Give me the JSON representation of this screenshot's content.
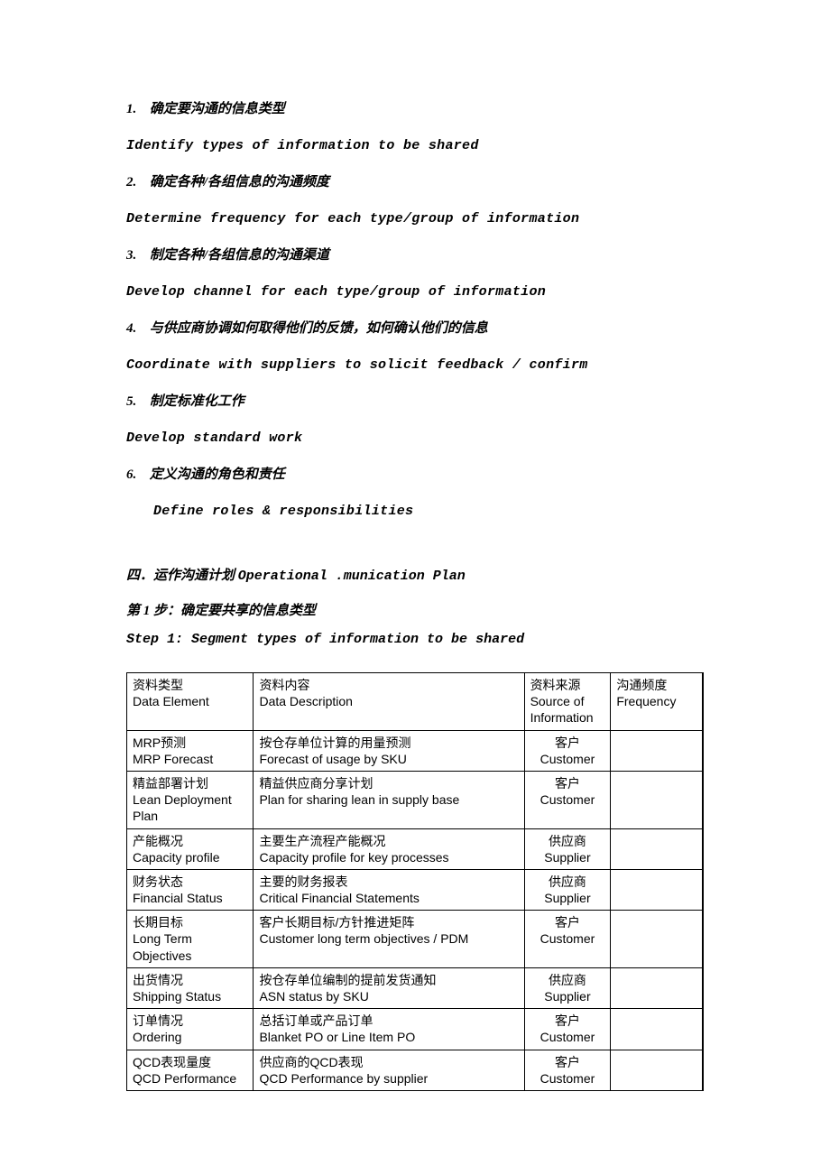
{
  "list": [
    {
      "num": "1.",
      "cn": "确定要沟通的信息类型",
      "en": "Identify types of information to be shared"
    },
    {
      "num": "2.",
      "cn": "确定各种/各组信息的沟通频度",
      "en": "Determine frequency for each type/group of information"
    },
    {
      "num": "3.",
      "cn": "制定各种/各组信息的沟通渠道",
      "en": "Develop channel for each type/group of information"
    },
    {
      "num": "4.",
      "cn": "与供应商协调如何取得他们的反馈，如何确认他们的信息",
      "en": "Coordinate with suppliers to solicit feedback / confirm"
    },
    {
      "num": "5.",
      "cn": "制定标准化工作",
      "en": "Develop standard work"
    },
    {
      "num": "6.",
      "cn": "定义沟通的角色和责任",
      "en": "Define roles & responsibilities"
    }
  ],
  "section": {
    "heading_cn": "四．运作沟通计划",
    "heading_en": "Operational .munication Plan",
    "step_cn": "第 1 步：确定要共享的信息类型",
    "step_en": "Step 1:  Segment types of information to be shared"
  },
  "table": {
    "headers": [
      {
        "cn": "资料类型",
        "en": "Data Element"
      },
      {
        "cn": "资料内容",
        "en": "Data Description"
      },
      {
        "cn": "资料来源",
        "en": "Source of Information"
      },
      {
        "cn": "沟通频度",
        "en": "Frequency"
      }
    ],
    "rows": [
      {
        "c1cn": "MRP预测",
        "c1en": "MRP Forecast",
        "c2cn": "按仓存单位计算的用量预测",
        "c2en": "Forecast of usage by SKU",
        "c3cn": "客户",
        "c3en": "Customer",
        "c4": ""
      },
      {
        "c1cn": "精益部署计划",
        "c1en": "Lean Deployment Plan",
        "c2cn": "精益供应商分享计划",
        "c2en": "Plan for sharing lean in supply base",
        "c3cn": "客户",
        "c3en": "Customer",
        "c4": ""
      },
      {
        "c1cn": "产能概况",
        "c1en": "Capacity profile",
        "c2cn": "主要生产流程产能概况",
        "c2en": "Capacity profile for key processes",
        "c3cn": "供应商",
        "c3en": "Supplier",
        "c4": ""
      },
      {
        "c1cn": "财务状态",
        "c1en": "Financial Status",
        "c2cn": "主要的财务报表",
        "c2en": "Critical Financial Statements",
        "c3cn": "供应商",
        "c3en": "Supplier",
        "c4": ""
      },
      {
        "c1cn": "长期目标",
        "c1en": "Long Term Objectives",
        "c2cn": "客户长期目标/方针推进矩阵",
        "c2en": "Customer long term objectives / PDM",
        "c3cn": "客户",
        "c3en": "Customer",
        "c4": ""
      },
      {
        "c1cn": "出货情况",
        "c1en": "Shipping Status",
        "c2cn": "按仓存单位编制的提前发货通知",
        "c2en": "ASN status by SKU",
        "c3cn": "供应商",
        "c3en": "Supplier",
        "c4": ""
      },
      {
        "c1cn": "订单情况",
        "c1en": "Ordering",
        "c2cn": "总括订单或产品订单",
        "c2en": "Blanket PO or Line Item PO",
        "c3cn": "客户",
        "c3en": "Customer",
        "c4": ""
      },
      {
        "c1cn": "QCD表现量度",
        "c1en": "QCD Performance",
        "c2cn": "供应商的QCD表现",
        "c2en": "QCD Performance by supplier",
        "c3cn": "客户",
        "c3en": "Customer",
        "c4": ""
      }
    ]
  }
}
